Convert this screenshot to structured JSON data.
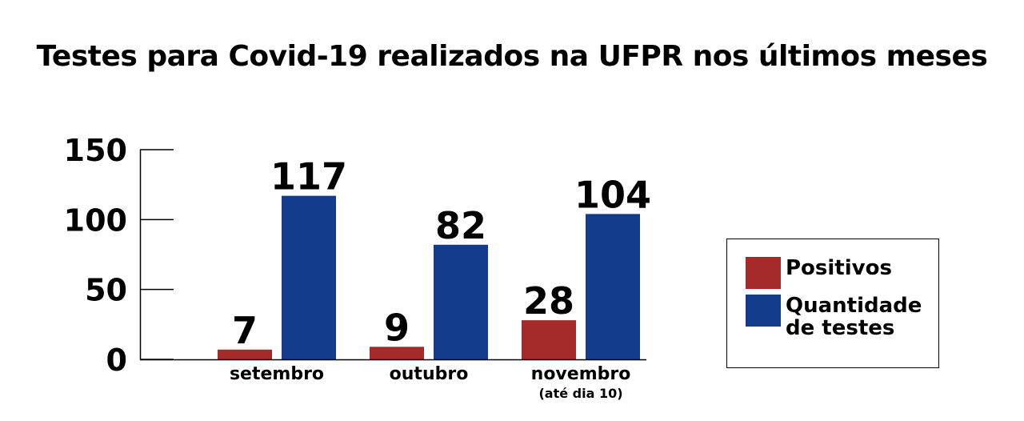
{
  "title": "Testes para Covid-19 realizados na UFPR nos últimos meses",
  "colors": {
    "positivos": "#a52a2a",
    "quantidade": "#143c8c",
    "axis": "#000000",
    "text": "#000000"
  },
  "legend": {
    "items": [
      {
        "label": "Positivos",
        "color_key": "positivos"
      },
      {
        "label": "Quantidade de testes",
        "color_key": "quantidade"
      }
    ]
  },
  "chart_data": {
    "type": "bar",
    "title": "Testes para Covid-19 realizados na UFPR nos últimos meses",
    "categories": [
      "setembro",
      "outubro",
      "novembro"
    ],
    "category_notes": [
      "",
      "",
      "(até dia 10)"
    ],
    "series": [
      {
        "name": "Positivos",
        "values": [
          7,
          9,
          28
        ]
      },
      {
        "name": "Quantidade de testes",
        "values": [
          117,
          82,
          104
        ]
      }
    ],
    "xlabel": "",
    "ylabel": "",
    "ylim": [
      0,
      150
    ],
    "yticks": [
      0,
      50,
      100,
      150
    ],
    "grid": false,
    "legend_position": "right"
  }
}
